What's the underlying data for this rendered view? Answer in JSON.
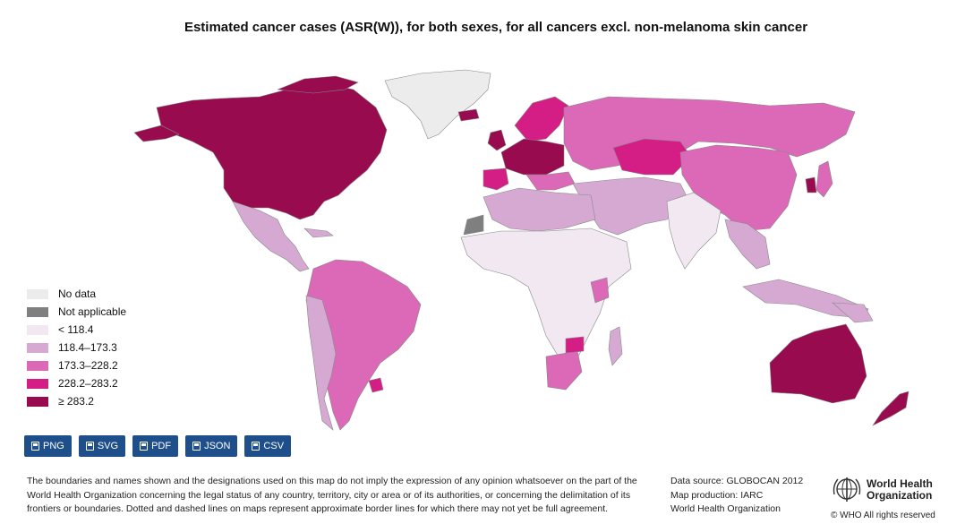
{
  "title": "Estimated cancer cases (ASR(W)), for both sexes, for all cancers excl. non-melanoma skin cancer",
  "legend": [
    {
      "label": "No data",
      "color": "#ececec"
    },
    {
      "label": "Not applicable",
      "color": "#7f7f7f"
    },
    {
      "label": "< 118.4",
      "color": "#f1e8f1"
    },
    {
      "label": "118.4–173.3",
      "color": "#d6a9d3"
    },
    {
      "label": "173.3–228.2",
      "color": "#dc68b8"
    },
    {
      "label": "228.2–283.2",
      "color": "#d51e85"
    },
    {
      "label": "≥ 283.2",
      "color": "#980b4f"
    }
  ],
  "buttons": {
    "png": "PNG",
    "svg": "SVG",
    "pdf": "PDF",
    "json": "JSON",
    "csv": "CSV"
  },
  "disclaimer": "The boundaries and names shown and the designations used on this map do not imply the expression of any opinion whatsoever on the part of the World Health Organization concerning the legal status of any country, territory, city or area or of its authorities, or concerning the delimitation of its frontiers or boundaries. Dotted and dashed lines on maps represent approximate border lines for which there may not yet be full agreement.",
  "source": {
    "line1": "Data source: GLOBOCAN 2012",
    "line2": "Map production: IARC",
    "line3": "World Health Organization"
  },
  "who_logo": {
    "line1": "World Health",
    "line2": "Organization"
  },
  "rights": "© WHO All rights reserved"
}
